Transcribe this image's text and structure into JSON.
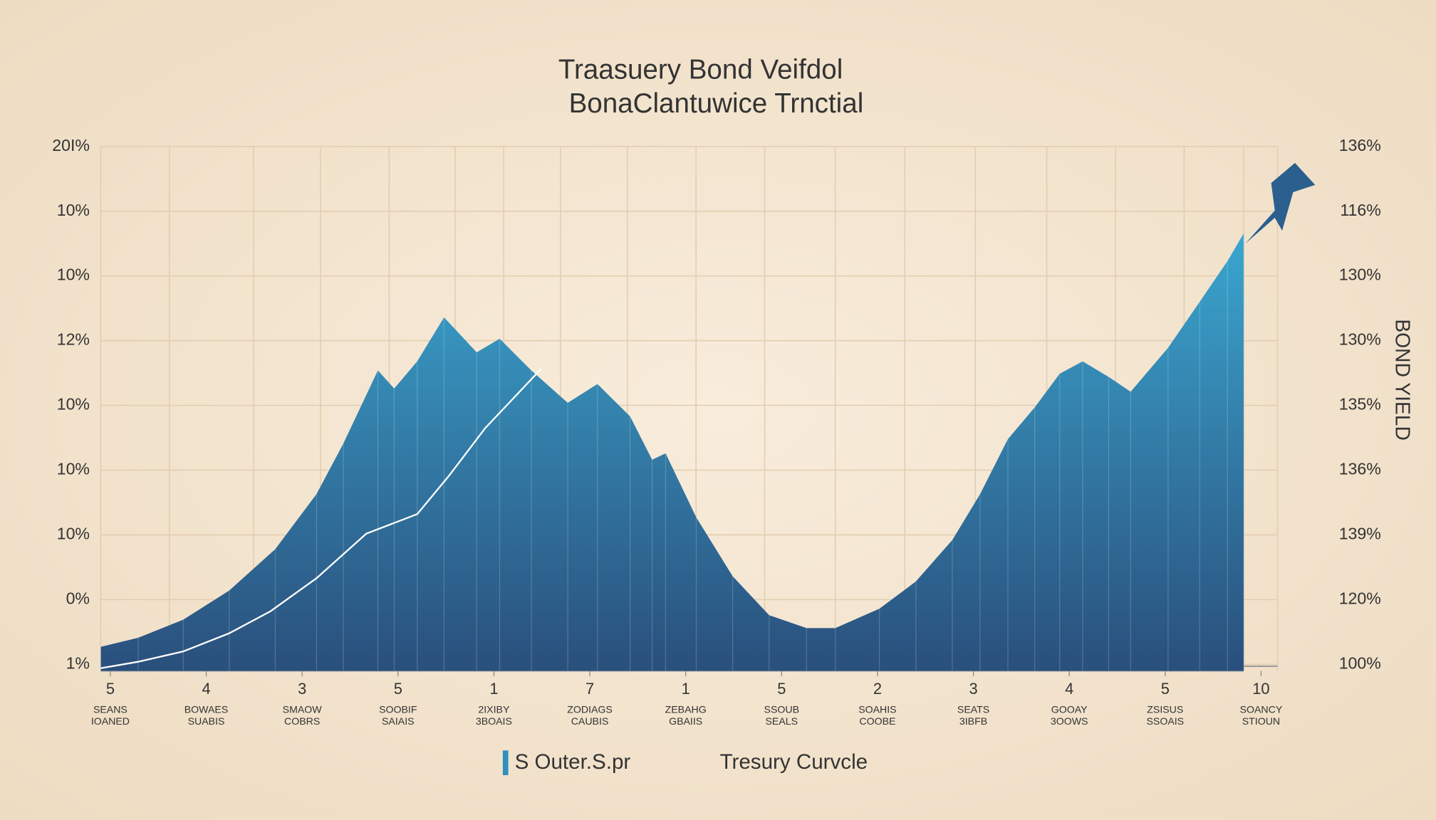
{
  "chart_data": {
    "type": "area",
    "title": "Traasuery Bond Veifdol",
    "subtitle": "BonaClantuwice Trnctial",
    "y2_label": "BOND YIELD",
    "categories": [
      "5",
      "4",
      "3",
      "5",
      "1",
      "7",
      "1",
      "5",
      "2",
      "3",
      "4",
      "5",
      "10"
    ],
    "sublabels": [
      [
        "SEANS",
        "IOANED"
      ],
      [
        "BOWAES",
        "SUABIS"
      ],
      [
        "SMAOW",
        "COBRS"
      ],
      [
        "SOOBIF",
        "SAIAIS"
      ],
      [
        "2IXIBY",
        "3BOAIS"
      ],
      [
        "ZODIAGS",
        "CAUBIS"
      ],
      [
        "ZEBAHG",
        "GBAIIS"
      ],
      [
        "SSOUB",
        "SEALS"
      ],
      [
        "SOAHIS",
        "COOBE"
      ],
      [
        "SEATS",
        "3IBFB"
      ],
      [
        "GOOAY",
        "3OOWS"
      ],
      [
        "ZSISUS",
        "SSOAIS"
      ],
      [
        "SOANCY",
        "STIOUN"
      ]
    ],
    "xlim": [
      -0.1,
      12
    ],
    "ylim": [
      -0.1,
      8
    ],
    "yticks": [
      {
        "value": 0,
        "label": "1%"
      },
      {
        "value": 1,
        "label": "0%"
      },
      {
        "value": 2,
        "label": "10%"
      },
      {
        "value": 3,
        "label": "10%"
      },
      {
        "value": 4,
        "label": "10%"
      },
      {
        "value": 5,
        "label": "12%"
      },
      {
        "value": 6,
        "label": "10%"
      },
      {
        "value": 7,
        "label": "10%"
      },
      {
        "value": 8,
        "label": "20I%"
      }
    ],
    "y2lim": [
      -0.1,
      8
    ],
    "y2ticks": [
      {
        "value": 0,
        "label": "100%"
      },
      {
        "value": 1,
        "label": "120%"
      },
      {
        "value": 2,
        "label": "139%"
      },
      {
        "value": 3,
        "label": "136%"
      },
      {
        "value": 4,
        "label": "135%"
      },
      {
        "value": 5,
        "label": "130%"
      },
      {
        "value": 6,
        "label": "130%"
      },
      {
        "value": 7,
        "label": "116%"
      },
      {
        "value": 8,
        "label": "136%"
      }
    ],
    "grid": true,
    "series": [
      {
        "name": "S Outer.S.pr",
        "color": "#2f8fbf",
        "kind": "area",
        "x": [
          -0.1,
          0.29,
          0.76,
          1.24,
          1.72,
          2.15,
          2.43,
          2.79,
          2.96,
          3.2,
          3.48,
          3.82,
          4.06,
          4.39,
          4.77,
          5.08,
          5.42,
          5.65,
          5.79,
          6.11,
          6.49,
          6.87,
          7.26,
          7.56,
          8.02,
          8.4,
          8.78,
          9.07,
          9.36,
          9.64,
          9.9,
          10.14,
          10.41,
          10.64,
          11.03,
          11.36,
          11.65,
          11.82
        ],
        "values": [
          0.27,
          0.41,
          0.69,
          1.14,
          1.78,
          2.63,
          3.41,
          4.54,
          4.26,
          4.68,
          5.36,
          4.82,
          5.03,
          4.54,
          4.04,
          4.33,
          3.83,
          3.16,
          3.26,
          2.27,
          1.36,
          0.76,
          0.56,
          0.56,
          0.86,
          1.28,
          1.92,
          2.63,
          3.48,
          3.97,
          4.49,
          4.68,
          4.44,
          4.21,
          4.89,
          5.6,
          6.23,
          6.66
        ]
      },
      {
        "name": "Tresury Curvcle",
        "color": "#ffffff",
        "kind": "line",
        "x": [
          -0.1,
          0.29,
          0.76,
          1.24,
          1.67,
          2.15,
          2.67,
          3.2,
          3.53,
          3.91,
          4.49
        ],
        "values": [
          -0.06,
          0.04,
          0.2,
          0.48,
          0.82,
          1.33,
          2.02,
          2.32,
          2.91,
          3.65,
          4.56
        ]
      }
    ]
  }
}
